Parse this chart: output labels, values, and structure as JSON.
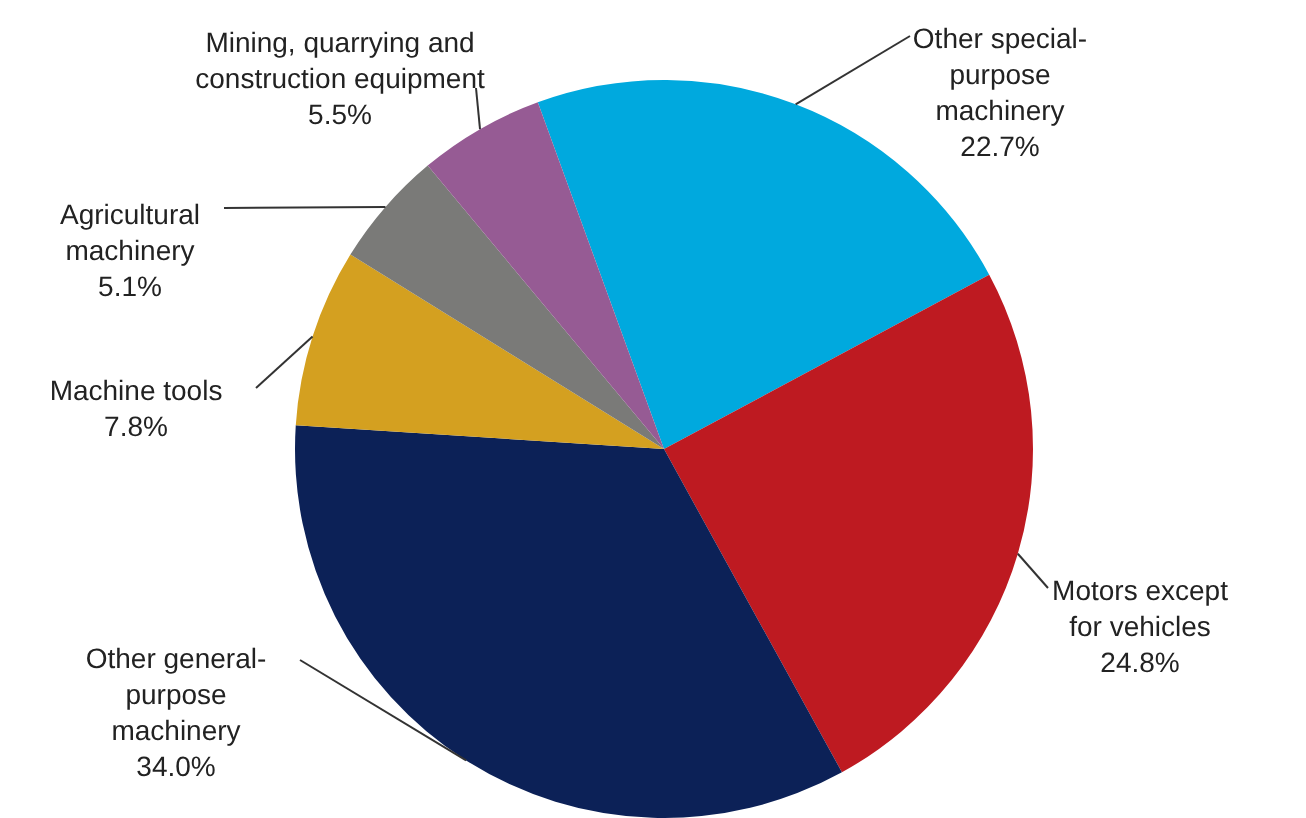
{
  "chart_data": {
    "type": "pie",
    "categories": [
      "Other special-purpose machinery",
      "Motors except for vehicles",
      "Other general-purpose machinery",
      "Machine tools",
      "Agricultural machinery",
      "Mining, quarrying and construction equipment"
    ],
    "values": [
      22.7,
      24.8,
      34.0,
      7.8,
      5.1,
      5.5
    ],
    "value_labels": [
      "22.7%",
      "24.8%",
      "34.0%",
      "7.8%",
      "5.1%",
      "5.5%"
    ],
    "colors": [
      "#00a9de",
      "#be1a21",
      "#0c2157",
      "#d4a020",
      "#7a7a78",
      "#965b94"
    ],
    "legend": false
  }
}
